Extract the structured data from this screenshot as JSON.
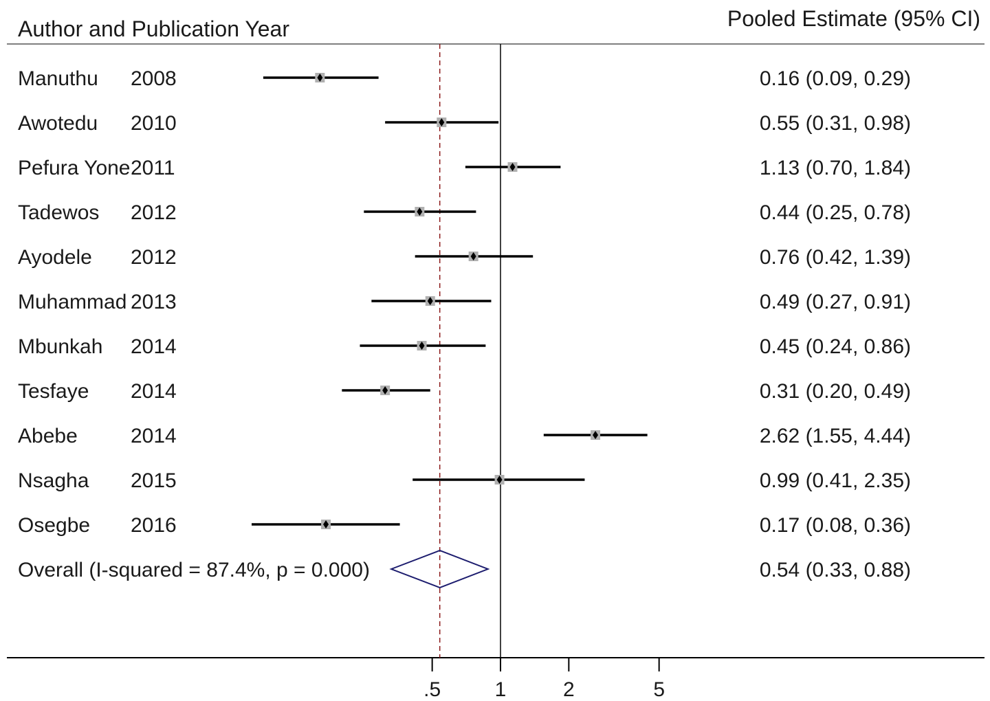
{
  "header": {
    "left": "Author and Publication Year",
    "right": "Pooled Estimate (95% CI)"
  },
  "chart_data": {
    "type": "forest",
    "x_scale": "log",
    "x_ticks": [
      {
        "value": 0.5,
        "label": ".5"
      },
      {
        "value": 1,
        "label": "1"
      },
      {
        "value": 2,
        "label": "2"
      },
      {
        "value": 5,
        "label": "5"
      }
    ],
    "null_line": 1,
    "pooled_line": 0.54,
    "studies": [
      {
        "author": "Manuthu",
        "year": "2008",
        "est": 0.16,
        "lo": 0.09,
        "hi": 0.29,
        "label": "0.16 (0.09, 0.29)"
      },
      {
        "author": "Awotedu",
        "year": "2010",
        "est": 0.55,
        "lo": 0.31,
        "hi": 0.98,
        "label": "0.55 (0.31, 0.98)"
      },
      {
        "author": "Pefura Yone",
        "year": "2011",
        "est": 1.13,
        "lo": 0.7,
        "hi": 1.84,
        "label": "1.13 (0.70, 1.84)"
      },
      {
        "author": "Tadewos",
        "year": "2012",
        "est": 0.44,
        "lo": 0.25,
        "hi": 0.78,
        "label": "0.44 (0.25, 0.78)"
      },
      {
        "author": "Ayodele",
        "year": "2012",
        "est": 0.76,
        "lo": 0.42,
        "hi": 1.39,
        "label": "0.76 (0.42, 1.39)"
      },
      {
        "author": "Muhammad",
        "year": "2013",
        "est": 0.49,
        "lo": 0.27,
        "hi": 0.91,
        "label": "0.49 (0.27, 0.91)"
      },
      {
        "author": "Mbunkah",
        "year": "2014",
        "est": 0.45,
        "lo": 0.24,
        "hi": 0.86,
        "label": "0.45 (0.24, 0.86)"
      },
      {
        "author": "Tesfaye",
        "year": "2014",
        "est": 0.31,
        "lo": 0.2,
        "hi": 0.49,
        "label": "0.31 (0.20, 0.49)"
      },
      {
        "author": "Abebe",
        "year": "2014",
        "est": 2.62,
        "lo": 1.55,
        "hi": 4.44,
        "label": "2.62 (1.55, 4.44)"
      },
      {
        "author": "Nsagha",
        "year": "2015",
        "est": 0.99,
        "lo": 0.41,
        "hi": 2.35,
        "label": "0.99 (0.41, 2.35)"
      },
      {
        "author": "Osegbe",
        "year": "2016",
        "est": 0.17,
        "lo": 0.08,
        "hi": 0.36,
        "label": "0.17 (0.08, 0.36)"
      }
    ],
    "overall": {
      "text": "Overall  (I-squared = 87.4%, p = 0.000)",
      "est": 0.54,
      "lo": 0.33,
      "hi": 0.88,
      "label": "0.54 (0.33, 0.88)"
    },
    "colors": {
      "ci_line": "#000000",
      "marker_box": "#b0b0b0",
      "null_line": "#000000",
      "pooled_line": "#8b1a1a",
      "diamond": "#1c1c6e"
    }
  }
}
